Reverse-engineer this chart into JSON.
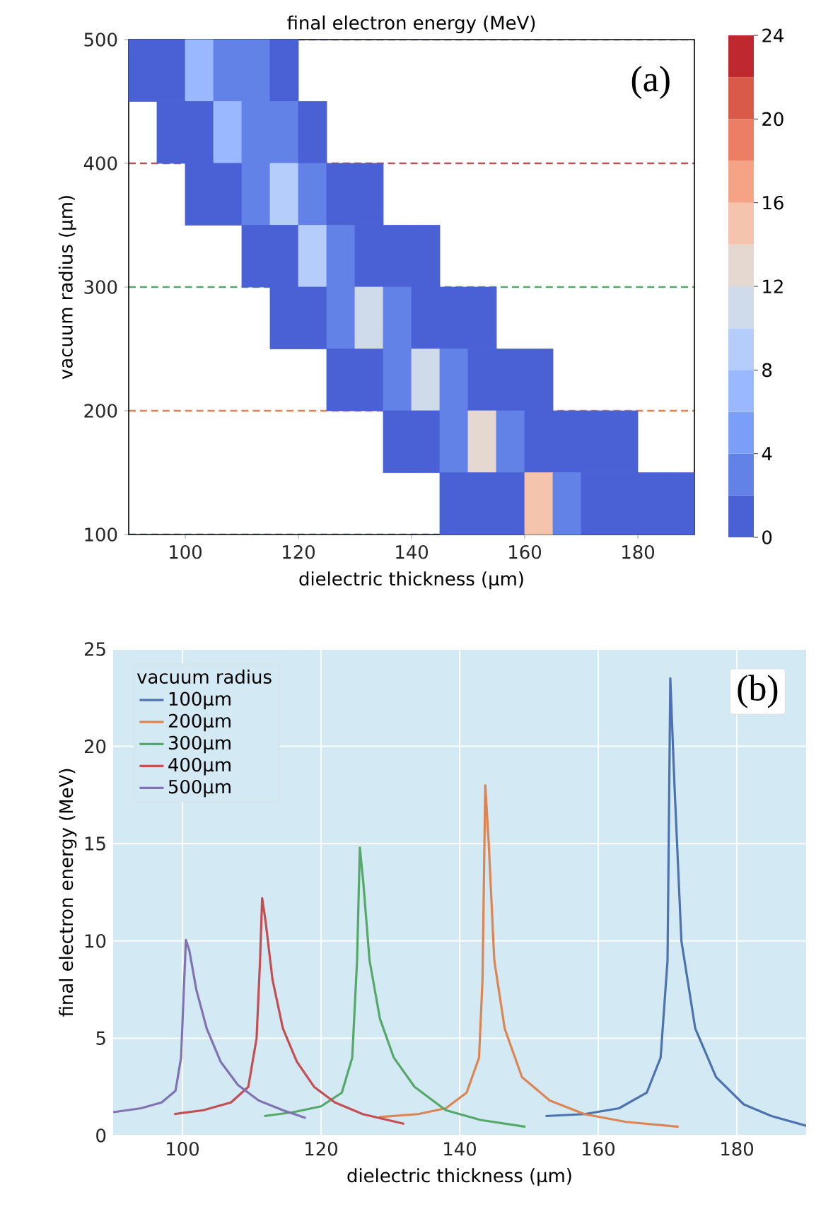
{
  "chart_data": [
    {
      "type": "scatter",
      "title": "final electron energy (MeV)",
      "xlabel": "dielectric thickness (µm)",
      "ylabel": "vacuum radius (µm)",
      "marker": "square",
      "x": [
        92.5,
        97.5,
        102.5,
        107.5,
        112.5,
        117.5,
        97.5,
        102.5,
        107.5,
        112.5,
        117.5,
        122.5,
        102.5,
        107.5,
        112.5,
        117.5,
        122.5,
        127.5,
        132.5,
        112.5,
        117.5,
        122.5,
        127.5,
        132.5,
        137.5,
        142.5,
        117.5,
        122.5,
        127.5,
        132.5,
        137.5,
        142.5,
        147.5,
        152.5,
        127.5,
        132.5,
        137.5,
        142.5,
        147.5,
        152.5,
        157.5,
        162.5,
        137.5,
        142.5,
        147.5,
        152.5,
        157.5,
        162.5,
        167.5,
        172.5,
        177.5,
        147.5,
        152.5,
        157.5,
        162.5,
        167.5,
        172.5,
        177.5,
        182.5,
        187.5
      ],
      "values": [
        475,
        475,
        475,
        475,
        475,
        475,
        425,
        425,
        425,
        425,
        425,
        425,
        375,
        375,
        375,
        375,
        375,
        375,
        375,
        325,
        325,
        325,
        325,
        325,
        325,
        325,
        275,
        275,
        275,
        275,
        275,
        275,
        275,
        275,
        225,
        225,
        225,
        225,
        225,
        225,
        225,
        225,
        175,
        175,
        175,
        175,
        175,
        175,
        175,
        175,
        175,
        125,
        125,
        125,
        125,
        125,
        125,
        125,
        125,
        125
      ],
      "cvalues": [
        1.3,
        1.8,
        6,
        3,
        2.5,
        1,
        1.2,
        1.6,
        7,
        3,
        2.5,
        1,
        1.1,
        1.4,
        2.5,
        8,
        3,
        1.2,
        0.9,
        1.2,
        1.6,
        9,
        3,
        1.3,
        1,
        0.8,
        1.1,
        1.3,
        2.2,
        10,
        2.5,
        1.2,
        0.9,
        0.7,
        1.1,
        1.3,
        2.5,
        11,
        2.5,
        1.3,
        1,
        0.8,
        1.1,
        1.3,
        2.5,
        13,
        2.5,
        1.3,
        1,
        0.8,
        0.6,
        1,
        1.2,
        1.6,
        15,
        3,
        1.5,
        1.1,
        0.9,
        0.7
      ],
      "clim": [
        0,
        24
      ],
      "cticks": [
        0,
        4,
        8,
        12,
        16,
        20,
        24
      ],
      "xlim": [
        90,
        190
      ],
      "xticks": [
        100,
        120,
        140,
        160,
        180
      ],
      "ylim": [
        100,
        500
      ],
      "yticks": [
        100,
        200,
        300,
        400,
        500
      ],
      "ref_lines": [
        {
          "axis": "y",
          "value": 500,
          "color": "#8172b3",
          "line_style": "dashed"
        },
        {
          "axis": "y",
          "value": 400,
          "color": "#c44e52",
          "line_style": "dashed"
        },
        {
          "axis": "y",
          "value": 300,
          "color": "#55a868",
          "line_style": "dashed"
        },
        {
          "axis": "y",
          "value": 200,
          "color": "#dd8452",
          "line_style": "dashed"
        },
        {
          "axis": "y",
          "value": 100,
          "color": "#4c72b0",
          "line_style": "dashed"
        }
      ],
      "annotations": [
        "(a)"
      ]
    },
    {
      "type": "line",
      "xlabel": "dielectric thickness (µm)",
      "ylabel": "final electron energy (MeV)",
      "xlim": [
        90,
        190
      ],
      "xticks": [
        100,
        120,
        140,
        160,
        180
      ],
      "ylim": [
        0,
        25
      ],
      "yticks": [
        0,
        5,
        10,
        15,
        20,
        25
      ],
      "grid": true,
      "legend": "top left",
      "legend_title": "vacuum radius",
      "series": [
        {
          "name": "100µm",
          "color": "#4c72b0",
          "x": [
            152.4,
            158,
            163,
            167,
            169,
            170,
            170.4,
            171,
            172,
            174,
            177,
            181,
            185,
            190
          ],
          "values": [
            1.0,
            1.1,
            1.4,
            2.2,
            4,
            9,
            23.5,
            18,
            10,
            5.5,
            3,
            1.6,
            1,
            0.5
          ]
        },
        {
          "name": "200µm",
          "color": "#dd8452",
          "x": [
            128.4,
            134,
            138,
            141,
            142.8,
            143.3,
            143.7,
            144.2,
            145,
            146.5,
            149,
            153,
            158,
            164,
            171.6
          ],
          "values": [
            0.95,
            1.1,
            1.4,
            2.2,
            4,
            8,
            18,
            15,
            9,
            5.5,
            3,
            1.8,
            1.1,
            0.7,
            0.45
          ]
        },
        {
          "name": "300µm",
          "color": "#55a868",
          "x": [
            111.8,
            116,
            120,
            123,
            124.5,
            125.2,
            125.6,
            126.1,
            127,
            128.5,
            130.5,
            133.5,
            138,
            143,
            149.5
          ],
          "values": [
            1.0,
            1.2,
            1.5,
            2.2,
            4,
            9,
            14.8,
            13,
            9,
            6,
            4,
            2.5,
            1.3,
            0.8,
            0.45
          ]
        },
        {
          "name": "400µm",
          "color": "#c44e52",
          "x": [
            98.8,
            103,
            107,
            109.5,
            110.7,
            111.2,
            111.5,
            112,
            113,
            114.5,
            116.5,
            119,
            122,
            126,
            132
          ],
          "values": [
            1.1,
            1.3,
            1.7,
            2.5,
            5,
            9,
            12.2,
            11,
            8,
            5.5,
            3.8,
            2.5,
            1.7,
            1.1,
            0.6
          ]
        },
        {
          "name": "500µm",
          "color": "#8172b3",
          "x": [
            90,
            94,
            97,
            99,
            99.8,
            100.2,
            100.5,
            101,
            102,
            103.5,
            105.5,
            108,
            111,
            114.5,
            117.8
          ],
          "values": [
            1.2,
            1.4,
            1.7,
            2.3,
            4,
            7.5,
            10.05,
            9.5,
            7.5,
            5.5,
            3.8,
            2.6,
            1.8,
            1.3,
            0.9
          ]
        }
      ],
      "annotations": [
        "(b)"
      ]
    }
  ]
}
